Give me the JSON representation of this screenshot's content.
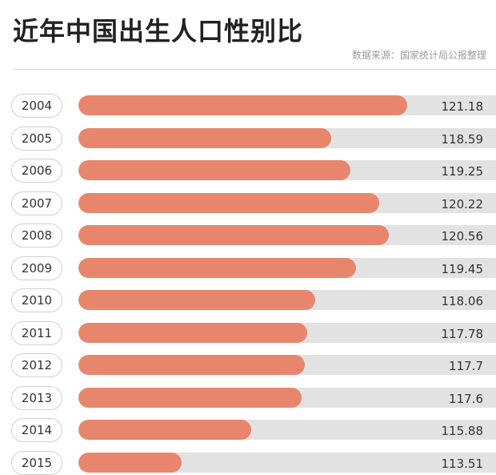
{
  "title": "近年中国出生人口性别比",
  "source": "数据来源：国家统计局公报整理",
  "colors": {
    "fill": "#e8866d",
    "track": "#e2e2e2"
  },
  "chart_data": {
    "type": "bar",
    "orientation": "horizontal",
    "title": "近年中国出生人口性别比",
    "categories": [
      "2004",
      "2005",
      "2006",
      "2007",
      "2008",
      "2009",
      "2010",
      "2011",
      "2012",
      "2013",
      "2014",
      "2015"
    ],
    "values": [
      121.18,
      118.59,
      119.25,
      120.22,
      120.56,
      119.45,
      118.06,
      117.78,
      117.7,
      117.6,
      115.88,
      113.51
    ],
    "labels": [
      "121.18",
      "118.59",
      "119.25",
      "120.22",
      "120.56",
      "119.45",
      "118.06",
      "117.78",
      "117.7",
      "117.6",
      "115.88",
      "113.51"
    ],
    "grid": false,
    "legend": false
  }
}
